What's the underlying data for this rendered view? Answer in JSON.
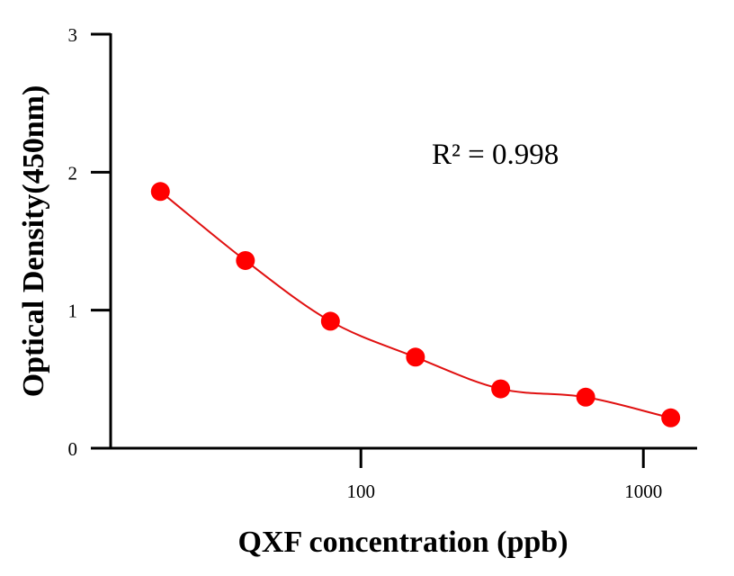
{
  "chart_data": {
    "type": "scatter",
    "x_scale": "log",
    "xlabel": "QXF concentration (ppb)",
    "ylabel": "Optical Density(450nm)",
    "xlim": [
      13,
      1550
    ],
    "ylim": [
      0,
      3
    ],
    "x_ticks": [
      {
        "value": 100,
        "label": "100"
      },
      {
        "value": 1000,
        "label": "1000"
      }
    ],
    "y_ticks": [
      {
        "value": 0,
        "label": "0"
      },
      {
        "value": 1,
        "label": "1"
      },
      {
        "value": 2,
        "label": "2"
      },
      {
        "value": 3,
        "label": "3"
      }
    ],
    "points": {
      "x": [
        19.5,
        39,
        78,
        156,
        312.5,
        625,
        1250
      ],
      "y": [
        1.86,
        1.36,
        0.92,
        0.66,
        0.43,
        0.37,
        0.22
      ]
    },
    "fit_curve": true,
    "annotation": "R² = 0.998",
    "grid": false,
    "colors": {
      "points": "#ff0000",
      "curve": "#e01010",
      "axes": "#000000"
    }
  }
}
